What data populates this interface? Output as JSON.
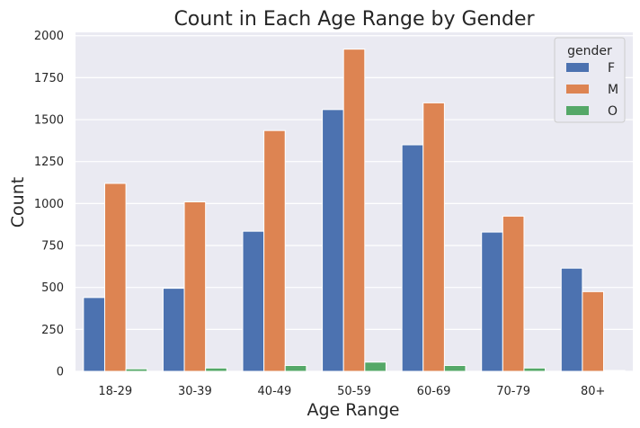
{
  "chart_data": {
    "type": "bar",
    "title": "Count in Each Age Range by Gender",
    "xlabel": "Age Range",
    "ylabel": "Count",
    "categories": [
      "18-29",
      "30-39",
      "40-49",
      "50-59",
      "60-69",
      "70-79",
      "80+"
    ],
    "series": [
      {
        "name": "F",
        "color": "#4c72b0",
        "values": [
          440,
          495,
          835,
          1560,
          1350,
          830,
          615
        ]
      },
      {
        "name": "M",
        "color": "#dd8452",
        "values": [
          1120,
          1010,
          1435,
          1920,
          1600,
          925,
          475
        ]
      },
      {
        "name": "O",
        "color": "#55a868",
        "values": [
          15,
          20,
          35,
          55,
          35,
          20,
          5
        ]
      }
    ],
    "ylim": [
      0,
      2020
    ],
    "yticks": [
      0,
      250,
      500,
      750,
      1000,
      1250,
      1500,
      1750,
      2000
    ],
    "grid": true,
    "legend": {
      "title": "gender",
      "placement": "top-right"
    }
  }
}
